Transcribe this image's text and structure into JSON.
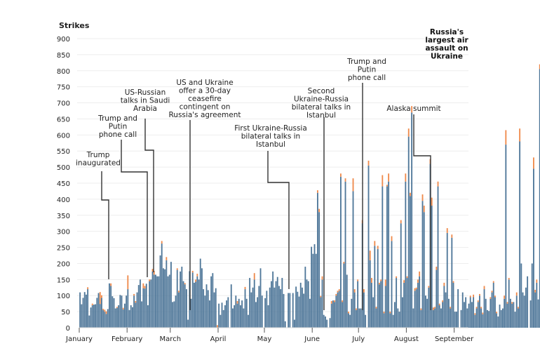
{
  "chart_data": {
    "type": "bar",
    "stacked": true,
    "title": "",
    "xlabel": "",
    "ylabel": "Strikes",
    "ylim": [
      0,
      900
    ],
    "yticks": [
      0,
      50,
      100,
      150,
      200,
      250,
      300,
      350,
      400,
      450,
      500,
      550,
      600,
      650,
      700,
      750,
      800,
      850,
      900
    ],
    "grid": true,
    "x_start": "January 1",
    "x_months": [
      {
        "label": "January",
        "day": 0
      },
      {
        "label": "February",
        "day": 31
      },
      {
        "label": "March",
        "day": 59
      },
      {
        "label": "April",
        "day": 90
      },
      {
        "label": "May",
        "day": 120
      },
      {
        "label": "June",
        "day": 151
      },
      {
        "label": "July",
        "day": 181
      },
      {
        "label": "August",
        "day": 212
      },
      {
        "label": "September",
        "day": 243
      }
    ],
    "colors": {
      "base": "#4f7799",
      "top": "#ef8a4c"
    },
    "series": [
      {
        "name": "base",
        "values": [
          110,
          73,
          93,
          111,
          103,
          120,
          38,
          63,
          70,
          72,
          73,
          93,
          108,
          74,
          93,
          55,
          50,
          43,
          58,
          138,
          130,
          98,
          92,
          60,
          62,
          70,
          102,
          100,
          57,
          75,
          100,
          120,
          55,
          70,
          64,
          100,
          78,
          110,
          133,
          150,
          82,
          123,
          122,
          137,
          70,
          145,
          150,
          175,
          165,
          165,
          160,
          160,
          225,
          262,
          185,
          182,
          210,
          160,
          165,
          205,
          80,
          82,
          100,
          180,
          110,
          175,
          190,
          145,
          135,
          120,
          25,
          176,
          90,
          172,
          140,
          143,
          160,
          150,
          215,
          185,
          120,
          100,
          135,
          117,
          85,
          160,
          170,
          110,
          123,
          0,
          75,
          40,
          78,
          55,
          70,
          85,
          95,
          0,
          135,
          60,
          70,
          100,
          75,
          90,
          70,
          85,
          60,
          120,
          90,
          40,
          155,
          110,
          125,
          150,
          80,
          95,
          130,
          185,
          100,
          0,
          92,
          115,
          70,
          125,
          145,
          175,
          125,
          145,
          158,
          130,
          120,
          155,
          105,
          20,
          0,
          108,
          108,
          0,
          108,
          25,
          128,
          112,
          97,
          140,
          125,
          106,
          190,
          150,
          145,
          90,
          252,
          230,
          260,
          230,
          420,
          360,
          95,
          150,
          40,
          35,
          25,
          0,
          30,
          75,
          85,
          80,
          100,
          110,
          115,
          470,
          80,
          200,
          455,
          165,
          45,
          40,
          90,
          425,
          110,
          55,
          145,
          60,
          60,
          325,
          110,
          40,
          0,
          505,
          210,
          140,
          95,
          255,
          60,
          245,
          135,
          145,
          440,
          45,
          130,
          440,
          455,
          45,
          270,
          40,
          80,
          155,
          60,
          50,
          325,
          95,
          140,
          455,
          155,
          595,
          410,
          670,
          60,
          115,
          120,
          140,
          160,
          55,
          395,
          360,
          100,
          90,
          125,
          510,
          380,
          55,
          60,
          180,
          440,
          70,
          60,
          80,
          130,
          110,
          295,
          90,
          60,
          280,
          140,
          50,
          50,
          120,
          0,
          55,
          110,
          80,
          95,
          60,
          75,
          95,
          80,
          95,
          40,
          60,
          80,
          100,
          60,
          42,
          120,
          90,
          55,
          52,
          90,
          110,
          140,
          95,
          45,
          35,
          72,
          55,
          60,
          90,
          570,
          75,
          150,
          90,
          75,
          80,
          50,
          100,
          60,
          580,
          200,
          110,
          100,
          125,
          160,
          0,
          85,
          200,
          495,
          110,
          140,
          88,
          805
        ]
      },
      {
        "name": "top",
        "values": [
          0,
          0,
          0,
          0,
          0,
          6,
          0,
          0,
          5,
          0,
          0,
          0,
          0,
          37,
          8,
          4,
          6,
          8,
          0,
          0,
          8,
          0,
          0,
          0,
          3,
          0,
          0,
          0,
          5,
          0,
          0,
          43,
          0,
          0,
          0,
          5,
          5,
          0,
          0,
          0,
          0,
          15,
          8,
          0,
          0,
          5,
          0,
          8,
          12,
          0,
          0,
          0,
          0,
          8,
          0,
          0,
          10,
          0,
          0,
          0,
          0,
          0,
          0,
          5,
          5,
          0,
          0,
          0,
          4,
          0,
          0,
          0,
          0,
          5,
          0,
          7,
          8,
          0,
          0,
          0,
          0,
          0,
          0,
          0,
          0,
          0,
          0,
          0,
          0,
          8,
          0,
          0,
          0,
          0,
          0,
          0,
          0,
          0,
          0,
          0,
          0,
          0,
          8,
          0,
          0,
          0,
          0,
          7,
          0,
          0,
          0,
          0,
          0,
          20,
          0,
          0,
          0,
          0,
          0,
          0,
          0,
          0,
          0,
          0,
          0,
          0,
          0,
          0,
          0,
          0,
          0,
          0,
          0,
          0,
          0,
          0,
          0,
          0,
          0,
          0,
          0,
          0,
          0,
          0,
          0,
          0,
          0,
          0,
          0,
          0,
          0,
          0,
          0,
          0,
          8,
          10,
          4,
          10,
          0,
          0,
          0,
          0,
          0,
          8,
          0,
          5,
          5,
          5,
          5,
          10,
          5,
          5,
          10,
          0,
          5,
          0,
          0,
          40,
          10,
          5,
          5,
          0,
          0,
          10,
          10,
          0,
          0,
          15,
          30,
          15,
          0,
          15,
          5,
          10,
          5,
          5,
          35,
          5,
          20,
          5,
          25,
          5,
          15,
          0,
          0,
          5,
          0,
          0,
          10,
          0,
          8,
          25,
          5,
          25,
          10,
          20,
          0,
          8,
          5,
          10,
          15,
          5,
          20,
          20,
          0,
          0,
          5,
          15,
          25,
          8,
          5,
          10,
          15,
          5,
          0,
          5,
          10,
          0,
          15,
          0,
          5,
          10,
          5,
          0,
          0,
          0,
          0,
          0,
          0,
          0,
          0,
          0,
          0,
          5,
          0,
          8,
          5,
          5,
          5,
          5,
          5,
          5,
          10,
          0,
          0,
          0,
          5,
          5,
          5,
          5,
          5,
          0,
          0,
          0,
          0,
          10,
          45,
          5,
          5,
          0,
          5,
          0,
          0,
          10,
          5,
          40,
          0,
          0,
          0,
          0,
          0,
          0,
          0,
          0,
          35,
          8,
          10,
          0,
          15
        ]
      }
    ],
    "annotations": [
      {
        "label": [
          "Trump",
          "inaugurated"
        ],
        "day": 19,
        "bold": false
      },
      {
        "label": [
          "Trump and",
          "Putin",
          "phone call"
        ],
        "day": 42,
        "bold": false
      },
      {
        "label": [
          "US-Russian",
          "talks in Saudi",
          "Arabia"
        ],
        "day": 48,
        "bold": false
      },
      {
        "label": [
          "US and Ukraine",
          "offer a 30-day",
          "ceasefire",
          "contingent on",
          "Russia's agreement"
        ],
        "day": 70,
        "bold": false
      },
      {
        "label": [
          "First Ukraine-Russia",
          "bilateral talks in",
          "Istanbul"
        ],
        "day": 135,
        "bold": false
      },
      {
        "label": [
          "Second",
          "Ukraine-Russia",
          "bilateral talks in",
          "Istanbul"
        ],
        "day": 152,
        "bold": false
      },
      {
        "label": [
          "Trump and",
          "Putin",
          "phone call"
        ],
        "day": 183,
        "bold": false
      },
      {
        "label": [
          "Alaska summit"
        ],
        "day": 226,
        "bold": false
      },
      {
        "label": [
          "Russia's",
          "largest air",
          "assault on",
          "Ukraine"
        ],
        "day": 249,
        "bold": true
      }
    ]
  }
}
